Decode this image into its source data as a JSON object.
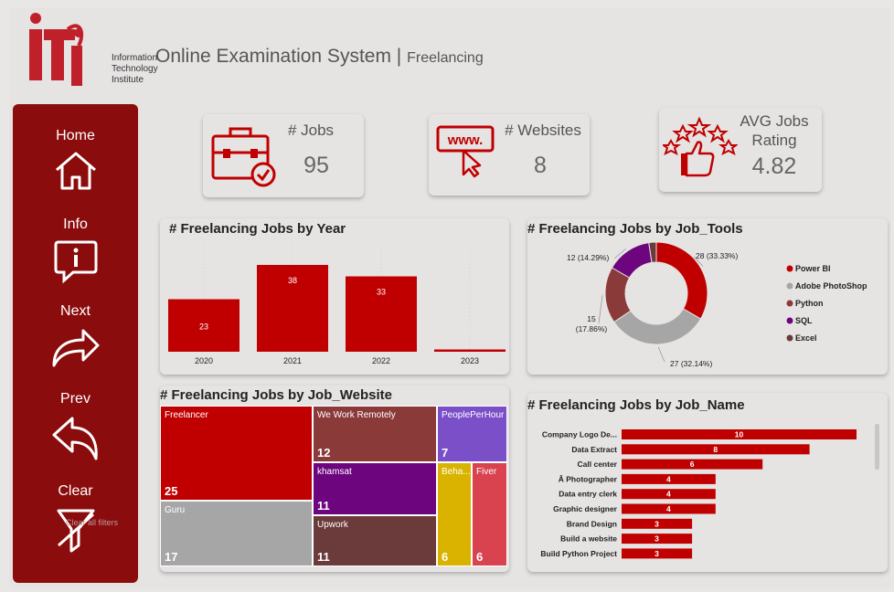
{
  "header": {
    "logo_text_lines": [
      "Information",
      "Technology",
      "Institute"
    ],
    "title": "Online Examination System",
    "separator": "|",
    "subtitle": "Freelancing"
  },
  "sidebar": {
    "items": [
      {
        "label": "Home",
        "icon": "home-icon"
      },
      {
        "label": "Info",
        "icon": "info-icon"
      },
      {
        "label": "Next",
        "icon": "next-arrow-icon"
      },
      {
        "label": "Prev",
        "icon": "prev-arrow-icon"
      },
      {
        "label": "Clear",
        "icon": "clear-filter-icon"
      }
    ],
    "clear_overlay": "Clear all filters"
  },
  "kpis": {
    "jobs": {
      "label": "# Jobs",
      "value": "95",
      "icon": "briefcase-icon"
    },
    "websites": {
      "label": "# Websites",
      "value": "8",
      "icon": "www-icon"
    },
    "rating": {
      "label_1": "AVG Jobs",
      "label_2": "Rating",
      "value": "4.82",
      "icon": "rating-stars-icon"
    }
  },
  "colors": {
    "accent": "#c00000",
    "sidebar": "#8b0c0c",
    "grey": "#a6a6a6",
    "brown": "#8b3a3a",
    "purple": "#6d057f",
    "darkbrown": "#6b3a3a"
  },
  "chart_data": [
    {
      "type": "bar",
      "title": "# Freelancing Jobs by Year",
      "categories": [
        "2020",
        "2021",
        "2022",
        "2023"
      ],
      "values": [
        23,
        38,
        33,
        1
      ],
      "labels": [
        "23",
        "38",
        "33",
        ""
      ],
      "ylim": [
        0,
        40
      ]
    },
    {
      "type": "pie",
      "title": "# Freelancing Jobs by Job_Tools",
      "donut": true,
      "slices": [
        {
          "name": "Power BI",
          "value": 28,
          "label": "28 (33.33%)",
          "color": "#c00000"
        },
        {
          "name": "Adobe PhotoShop",
          "value": 27,
          "label": "27 (32.14%)",
          "color": "#a6a6a6"
        },
        {
          "name": "Python",
          "value": 15,
          "label": "15\n(17.86%)",
          "color": "#8b3a3a"
        },
        {
          "name": "SQL",
          "value": 12,
          "label": "12 (14.29%)",
          "color": "#6d057f"
        },
        {
          "name": "Excel",
          "value": 2,
          "label": "",
          "color": "#6b3a3a"
        }
      ],
      "legend": [
        "Power BI",
        "Adobe PhotoShop",
        "Python",
        "SQL",
        "Excel"
      ],
      "legend_position": "right"
    },
    {
      "type": "treemap",
      "title": "# Freelancing Jobs by Job_Website",
      "cells": [
        {
          "name": "Freelancer",
          "value": 25,
          "color": "#c00000"
        },
        {
          "name": "Guru",
          "value": 17,
          "color": "#a6a6a6"
        },
        {
          "name": "We Work Remotely",
          "value": 12,
          "color": "#8b3a3a"
        },
        {
          "name": "khamsat",
          "value": 11,
          "color": "#6d057f"
        },
        {
          "name": "Upwork",
          "value": 11,
          "color": "#6b3a3a"
        },
        {
          "name": "PeoplePerHour",
          "value": 7,
          "color": "#7b4fc8"
        },
        {
          "name": "Beha...",
          "value": 6,
          "color": "#d9b300"
        },
        {
          "name": "Fiver",
          "value": 6,
          "color": "#d9434f"
        }
      ]
    },
    {
      "type": "bar",
      "orientation": "horizontal",
      "title": "# Freelancing Jobs by Job_Name",
      "categories": [
        "Company Logo De...",
        "Data Extract",
        "Call center",
        "Â Photographer",
        "Data entry clerk",
        "Graphic designer",
        "Brand Design",
        "Build a website",
        "Build Python Project"
      ],
      "values": [
        10,
        8,
        6,
        4,
        4,
        4,
        3,
        3,
        3
      ],
      "xlim": [
        0,
        10
      ]
    }
  ]
}
